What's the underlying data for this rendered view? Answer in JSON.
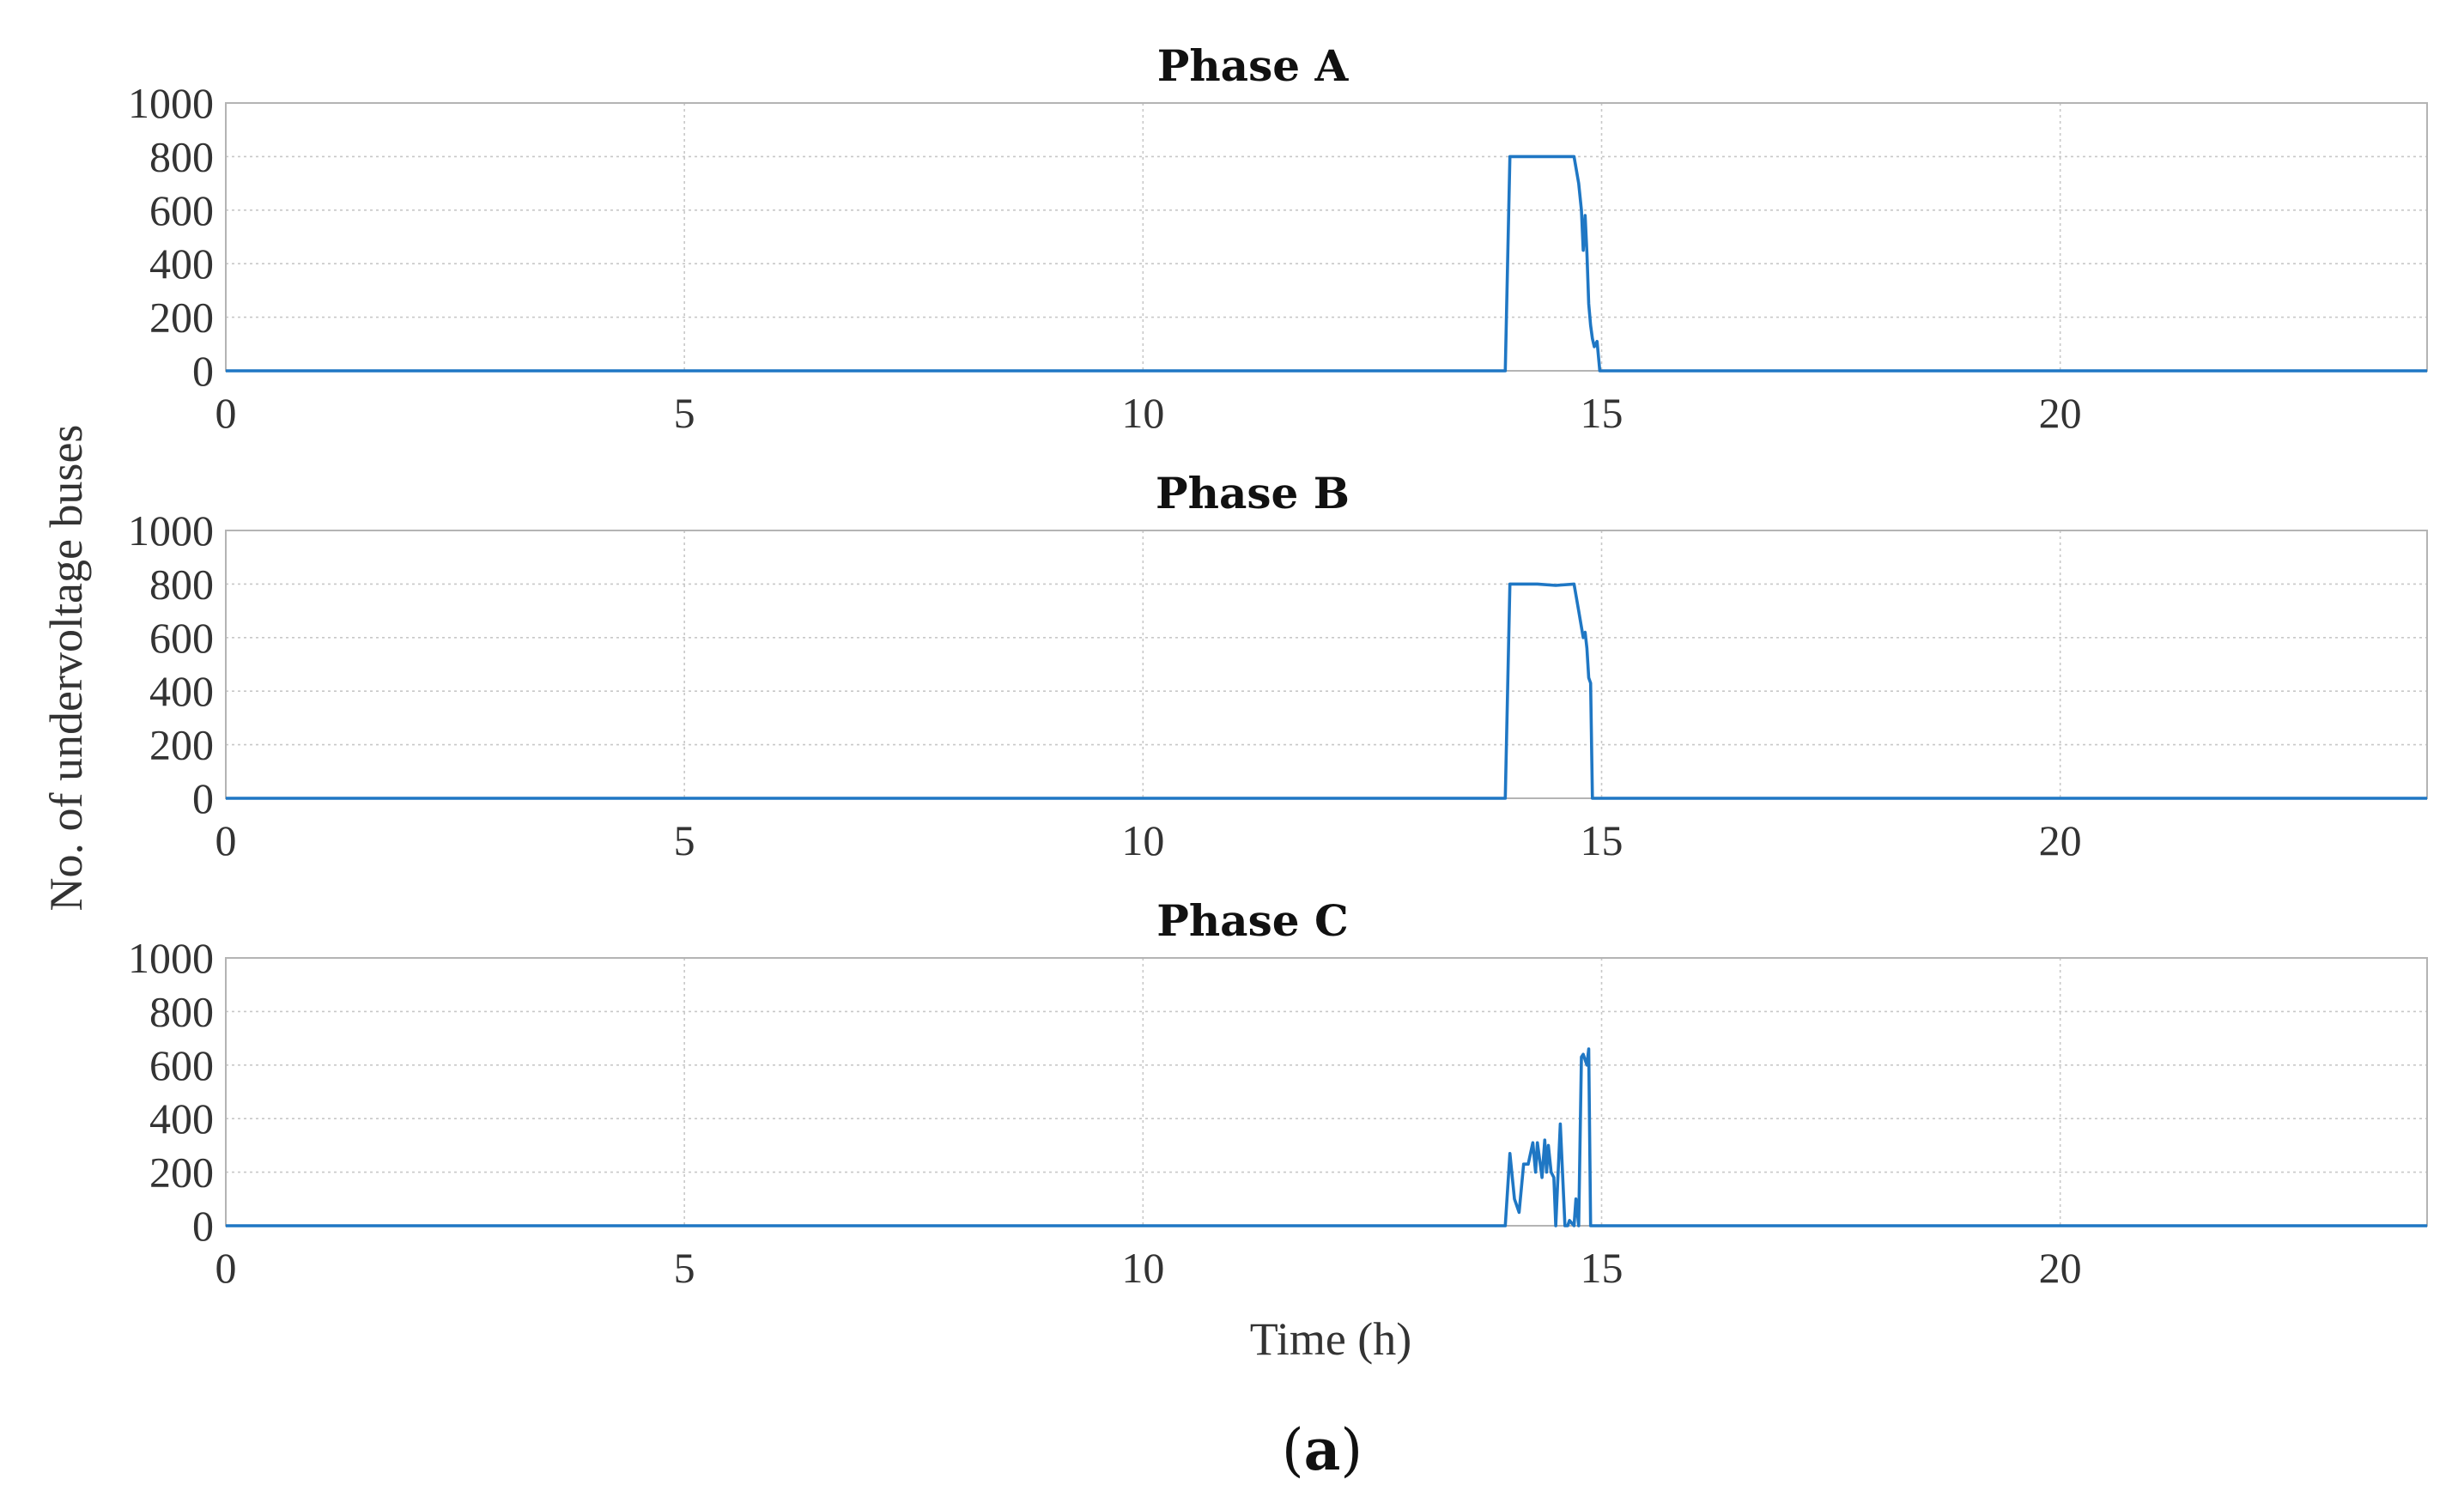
{
  "chart_data": {
    "type": "line",
    "ylabel": "No. of undervoltage buses",
    "xlabel": "Time (h)",
    "xlim": [
      0,
      24
    ],
    "ylim": [
      0,
      1000
    ],
    "xticks": [
      0,
      5,
      10,
      15,
      20
    ],
    "yticks": [
      0,
      200,
      400,
      600,
      800,
      1000
    ],
    "grid": true,
    "color": "#1f77c4",
    "caption": {
      "open": "(",
      "letter": "a",
      "close": ")"
    },
    "panels": [
      {
        "title": "Phase A",
        "x": [
          0,
          13.95,
          14.0,
          14.2,
          14.5,
          14.7,
          14.75,
          14.78,
          14.8,
          14.82,
          14.84,
          14.86,
          14.88,
          14.9,
          14.92,
          14.95,
          14.98,
          15.0,
          24
        ],
        "y": [
          0,
          0,
          800,
          800,
          800,
          800,
          700,
          600,
          450,
          580,
          440,
          250,
          170,
          120,
          90,
          110,
          0,
          0,
          0
        ]
      },
      {
        "title": "Phase B",
        "x": [
          0,
          13.95,
          14.0,
          14.3,
          14.5,
          14.7,
          14.75,
          14.8,
          14.82,
          14.84,
          14.86,
          14.88,
          14.9,
          14.93,
          15.0,
          24
        ],
        "y": [
          0,
          0,
          800,
          800,
          795,
          800,
          700,
          600,
          620,
          560,
          450,
          430,
          0,
          0,
          0,
          0
        ]
      },
      {
        "title": "Phase C",
        "x": [
          0,
          13.95,
          14.0,
          14.05,
          14.1,
          14.15,
          14.2,
          14.25,
          14.28,
          14.3,
          14.35,
          14.38,
          14.4,
          14.42,
          14.45,
          14.48,
          14.5,
          14.55,
          14.6,
          14.63,
          14.65,
          14.7,
          14.72,
          14.75,
          14.78,
          14.8,
          14.84,
          14.86,
          14.88,
          14.9,
          14.93,
          15.0,
          24
        ],
        "y": [
          0,
          0,
          270,
          100,
          50,
          230,
          230,
          310,
          200,
          310,
          180,
          320,
          200,
          300,
          200,
          180,
          0,
          380,
          0,
          0,
          20,
          0,
          100,
          0,
          630,
          640,
          600,
          660,
          0,
          0,
          0,
          0,
          0
        ]
      }
    ]
  }
}
